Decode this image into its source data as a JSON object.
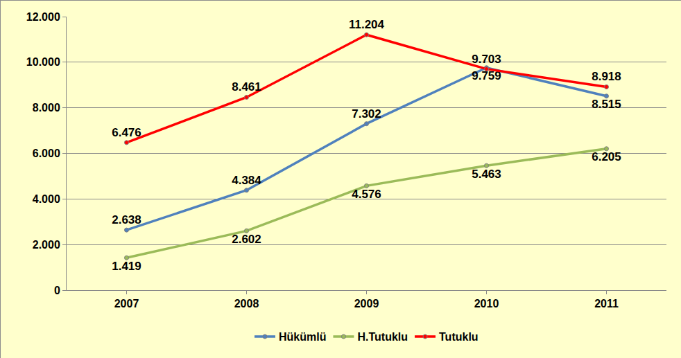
{
  "chart_data": {
    "type": "line",
    "categories": [
      "2007",
      "2008",
      "2009",
      "2010",
      "2011"
    ],
    "series": [
      {
        "name": "Hükümlü",
        "color": "#4F81BD",
        "marker": "circle",
        "values": [
          2638,
          4384,
          7302,
          9759,
          8515
        ],
        "value_labels": [
          "2.638",
          "4.384",
          "7.302",
          "9.759",
          "8.515"
        ]
      },
      {
        "name": "H.Tutuklu",
        "color": "#9BBB59",
        "marker": "circle",
        "values": [
          1419,
          2602,
          4576,
          5463,
          6205
        ],
        "value_labels": [
          "1.419",
          "2.602",
          "4.576",
          "5.463",
          "6.205"
        ]
      },
      {
        "name": "Tutuklu",
        "color": "#FF0000",
        "marker": "circle",
        "values": [
          6476,
          8461,
          11204,
          9703,
          8918
        ],
        "value_labels": [
          "6.476",
          "8.461",
          "11.204",
          "9.703",
          "8.918"
        ]
      }
    ],
    "ylim": [
      0,
      12000
    ],
    "yticks": [
      0,
      {
        "value": 2000,
        "label": "2.000"
      },
      {
        "value": 4000,
        "label": "4.000"
      },
      {
        "value": 6000,
        "label": "6.000"
      },
      {
        "value": 8000,
        "label": "8.000"
      },
      {
        "value": 10000,
        "label": "10.000"
      },
      {
        "value": 12000,
        "label": "12.000"
      }
    ],
    "grid": true,
    "legend": "bottom",
    "data_labels": true
  }
}
